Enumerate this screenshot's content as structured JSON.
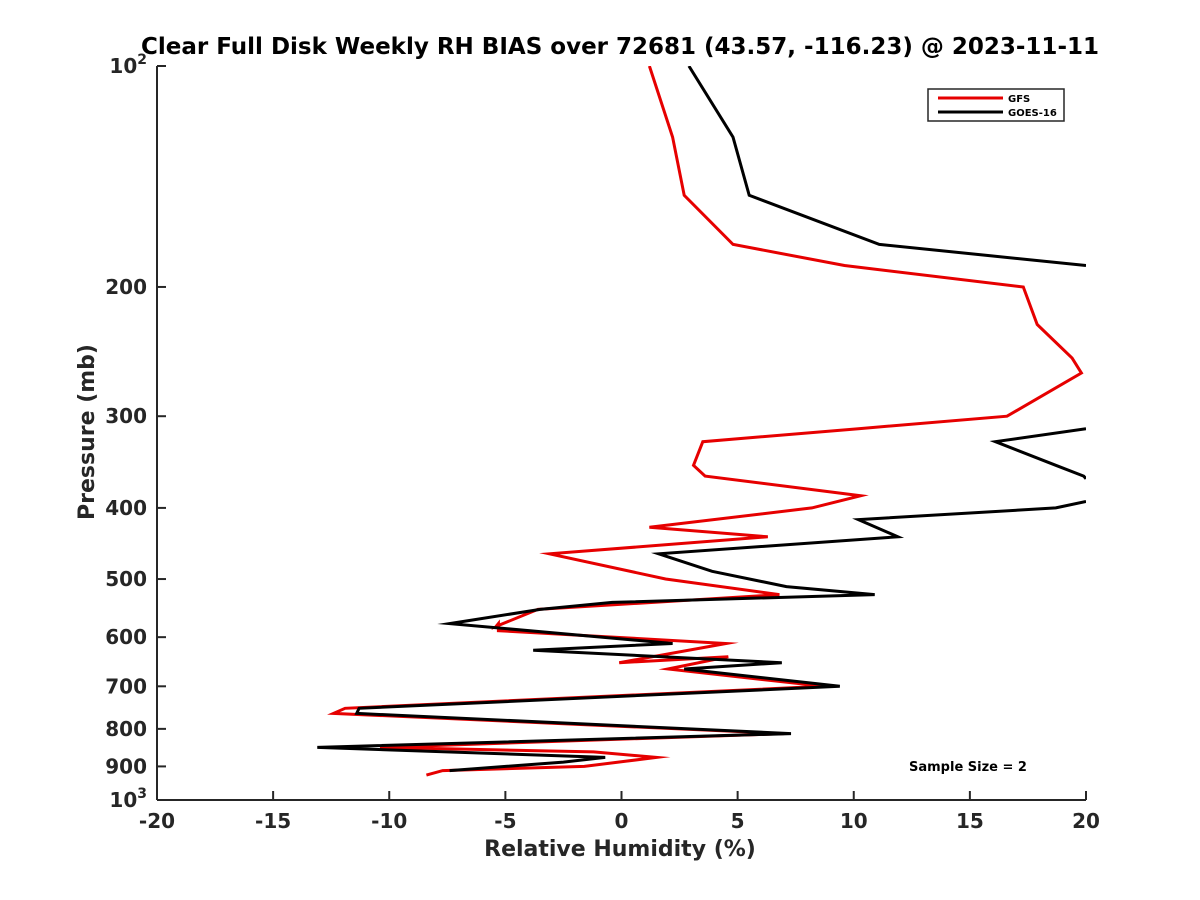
{
  "chart_data": {
    "type": "line",
    "title": "Clear Full Disk Weekly RH BIAS over 72681 (43.57, -116.23) @ 2023-11-11",
    "xlabel": "Relative Humidity (%)",
    "ylabel": "Pressure (mb)",
    "xlim": [
      -20,
      20
    ],
    "ylim": [
      100,
      1000
    ],
    "y_scale": "log",
    "y_reversed": true,
    "x_ticks": [
      "-20",
      "-15",
      "-10",
      "-5",
      "0",
      "5",
      "10",
      "15",
      "20"
    ],
    "y_ticks": [
      {
        "value": 100,
        "base": "10",
        "exp": "2"
      },
      {
        "value": 200,
        "label": "200"
      },
      {
        "value": 300,
        "label": "300"
      },
      {
        "value": 400,
        "label": "400"
      },
      {
        "value": 500,
        "label": "500"
      },
      {
        "value": 600,
        "label": "600"
      },
      {
        "value": 700,
        "label": "700"
      },
      {
        "value": 800,
        "label": "800"
      },
      {
        "value": 900,
        "label": "900"
      },
      {
        "value": 1000,
        "base": "10",
        "exp": "3"
      }
    ],
    "grid": false,
    "legend_position": "top-right",
    "annotation": "Sample Size = 2",
    "series": [
      {
        "name": "GFS",
        "color": "#e60000",
        "points": [
          [
            1.2,
            100
          ],
          [
            2.2,
            125
          ],
          [
            2.7,
            150
          ],
          [
            4.8,
            175
          ],
          [
            9.6,
            187
          ],
          [
            17.3,
            200
          ],
          [
            17.9,
            225
          ],
          [
            19.4,
            250
          ],
          [
            19.8,
            262
          ],
          [
            16.6,
            300
          ],
          [
            10.2,
            312
          ],
          [
            3.5,
            325
          ],
          [
            3.1,
            350
          ],
          [
            3.6,
            362
          ],
          [
            10.3,
            385
          ],
          [
            8.2,
            400
          ],
          [
            1.2,
            425
          ],
          [
            6.3,
            438
          ],
          [
            -3.1,
            462
          ],
          [
            1.9,
            500
          ],
          [
            6.8,
            525
          ],
          [
            -3.6,
            550
          ],
          [
            -5.4,
            580
          ],
          [
            -5.3,
            575
          ],
          [
            -5.3,
            588
          ],
          [
            4.5,
            612
          ],
          [
            -0.1,
            650
          ],
          [
            4.6,
            638
          ],
          [
            2.0,
            663
          ],
          [
            8.7,
            700
          ],
          [
            -11.9,
            750
          ],
          [
            -12.4,
            762
          ],
          [
            7.0,
            812
          ],
          [
            -10.4,
            848
          ],
          [
            -1.2,
            860
          ],
          [
            1.5,
            875
          ],
          [
            -1.6,
            900
          ],
          [
            -7.7,
            912
          ],
          [
            -8.4,
            925
          ]
        ]
      },
      {
        "name": "GOES-16",
        "color": "#000000",
        "points": [
          [
            2.9,
            100
          ],
          [
            4.8,
            125
          ],
          [
            5.5,
            150
          ],
          [
            11.1,
            175
          ],
          [
            20,
            187
          ],
          [
            null,
            300
          ],
          [
            20,
            312
          ],
          [
            16.1,
            325
          ],
          [
            18.7,
            350
          ],
          [
            19.9,
            362
          ],
          [
            20,
            365
          ],
          [
            null,
            390
          ],
          [
            20,
            392
          ],
          [
            18.7,
            400
          ],
          [
            10.2,
            415
          ],
          [
            11.9,
            438
          ],
          [
            1.6,
            462
          ],
          [
            3.9,
            488
          ],
          [
            7.1,
            512
          ],
          [
            10.9,
            525
          ],
          [
            -0.4,
            538
          ],
          [
            -3.5,
            550
          ],
          [
            -7.4,
            575
          ],
          [
            2.2,
            612
          ],
          [
            -3.8,
            625
          ],
          [
            6.9,
            650
          ],
          [
            2.7,
            663
          ],
          [
            9.4,
            700
          ],
          [
            -11.3,
            750
          ],
          [
            -11.4,
            762
          ],
          [
            7.3,
            812
          ],
          [
            -13.1,
            848
          ],
          [
            -0.7,
            875
          ],
          [
            -2.5,
            888
          ],
          [
            -7.4,
            912
          ]
        ]
      }
    ]
  }
}
